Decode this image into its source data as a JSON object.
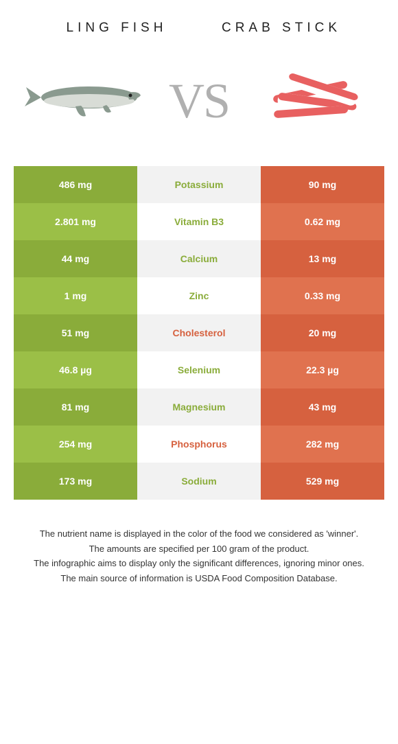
{
  "titles": {
    "left": "Ling fish",
    "right": "Crab stick"
  },
  "vs": "VS",
  "colors": {
    "green_dark": "#8aac3a",
    "green_light": "#9bbf47",
    "orange_dark": "#d6613f",
    "orange_light": "#e0724f",
    "mid_dark": "#f2f2f2",
    "mid_light": "#ffffff",
    "text_green": "#8aac3a",
    "text_orange": "#d6613f"
  },
  "rows": [
    {
      "left": "486 mg",
      "nutrient": "Potassium",
      "right": "90 mg",
      "winner": "left"
    },
    {
      "left": "2.801 mg",
      "nutrient": "Vitamin B3",
      "right": "0.62 mg",
      "winner": "left"
    },
    {
      "left": "44 mg",
      "nutrient": "Calcium",
      "right": "13 mg",
      "winner": "left"
    },
    {
      "left": "1 mg",
      "nutrient": "Zinc",
      "right": "0.33 mg",
      "winner": "left"
    },
    {
      "left": "51 mg",
      "nutrient": "Cholesterol",
      "right": "20 mg",
      "winner": "right"
    },
    {
      "left": "46.8 µg",
      "nutrient": "Selenium",
      "right": "22.3 µg",
      "winner": "left"
    },
    {
      "left": "81 mg",
      "nutrient": "Magnesium",
      "right": "43 mg",
      "winner": "left"
    },
    {
      "left": "254 mg",
      "nutrient": "Phosphorus",
      "right": "282 mg",
      "winner": "right"
    },
    {
      "left": "173 mg",
      "nutrient": "Sodium",
      "right": "529 mg",
      "winner": "left"
    }
  ],
  "footer": [
    "The nutrient name is displayed in the color of the food we considered as 'winner'.",
    "The amounts are specified per 100 gram of the product.",
    "The infographic aims to display only the significant differences, ignoring minor ones.",
    "The main source of information is USDA Food Composition Database."
  ]
}
